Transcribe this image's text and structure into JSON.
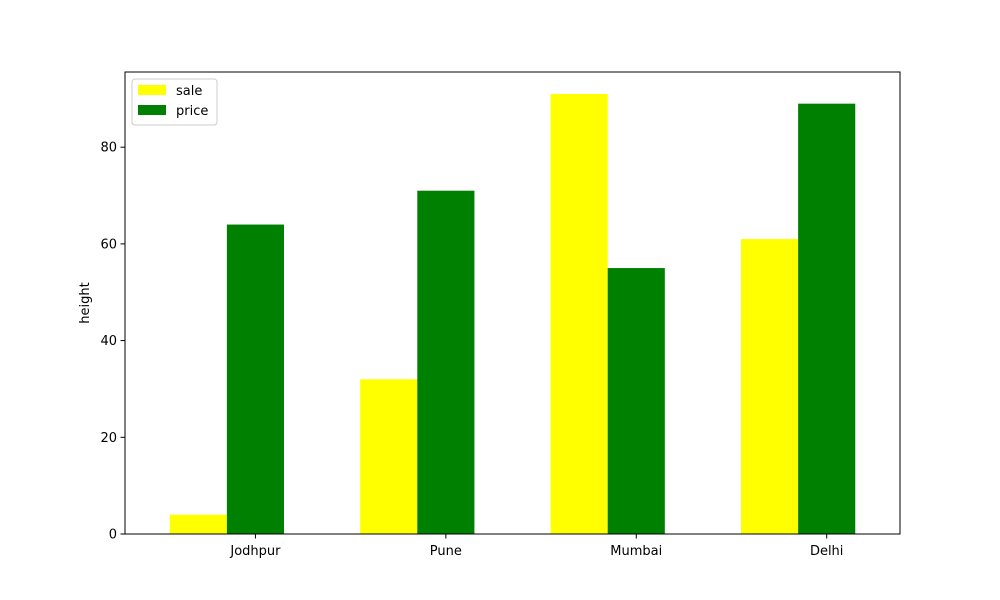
{
  "chart_data": {
    "type": "bar",
    "title": "",
    "xlabel": "",
    "ylabel": "height",
    "categories": [
      "Jodhpur",
      "Pune",
      "Mumbai",
      "Delhi"
    ],
    "series": [
      {
        "name": "sale",
        "color": "#ffff00",
        "values": [
          4,
          32,
          91,
          61
        ]
      },
      {
        "name": "price",
        "color": "#008000",
        "values": [
          64,
          71,
          55,
          89
        ]
      }
    ],
    "ylim": [
      0,
      95.55
    ],
    "yticks": [
      0,
      20,
      40,
      60,
      80
    ],
    "grid": false,
    "legend": "top-left"
  }
}
